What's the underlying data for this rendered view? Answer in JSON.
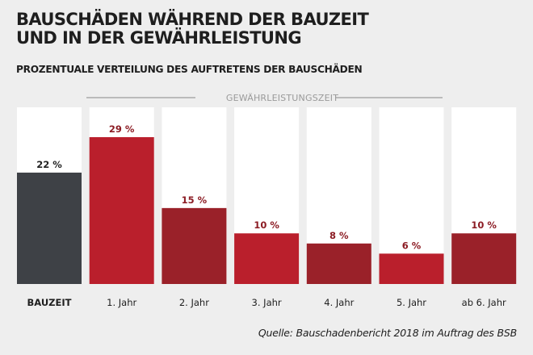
{
  "title_line1": "BAUSCHÄDEN WÄHREND DER BAUZEIT",
  "title_line2": "UND IN DER GEWÄHRLEISTUNG",
  "subtitle": "PROZENTUALE VERTEILUNG DES AUFTRETENS DER BAUSCHÄDEN",
  "bracket_label": "GEWÄHRLEISTUNGSZEIT",
  "source": "Quelle: Bauschadenbericht 2018 im Auftrag des BSB",
  "colors": {
    "background": "#eeeeee",
    "panel": "#ffffff",
    "bauzeit": "#3e4146",
    "red": "#ba1f2c",
    "dark_red": "#9a2129",
    "label_red": "#8c1c24",
    "label_dark": "#222222",
    "bracket": "#aaaaaa"
  },
  "chart_data": {
    "type": "bar",
    "title": "BAUSCHÄDEN WÄHREND DER BAUZEIT UND IN DER GEWÄHRLEISTUNG",
    "subtitle": "PROZENTUALE VERTEILUNG DES AUFTRETENS DER BAUSCHÄDEN",
    "categories": [
      "BAUZEIT",
      "1. Jahr",
      "2. Jahr",
      "3. Jahr",
      "4. Jahr",
      "5. Jahr",
      "ab 6. Jahr"
    ],
    "values": [
      22,
      29,
      15,
      10,
      8,
      6,
      10
    ],
    "value_labels": [
      "22 %",
      "29 %",
      "15 %",
      "10 %",
      "8 %",
      "6 %",
      "10 %"
    ],
    "bar_colors": [
      "#3e4146",
      "#ba1f2c",
      "#9a2129",
      "#ba1f2c",
      "#9a2129",
      "#ba1f2c",
      "#9a2129"
    ],
    "unit": "%",
    "ylim": [
      0,
      29
    ],
    "grid": false,
    "annotation": "GEWÄHRLEISTUNGSZEIT"
  }
}
